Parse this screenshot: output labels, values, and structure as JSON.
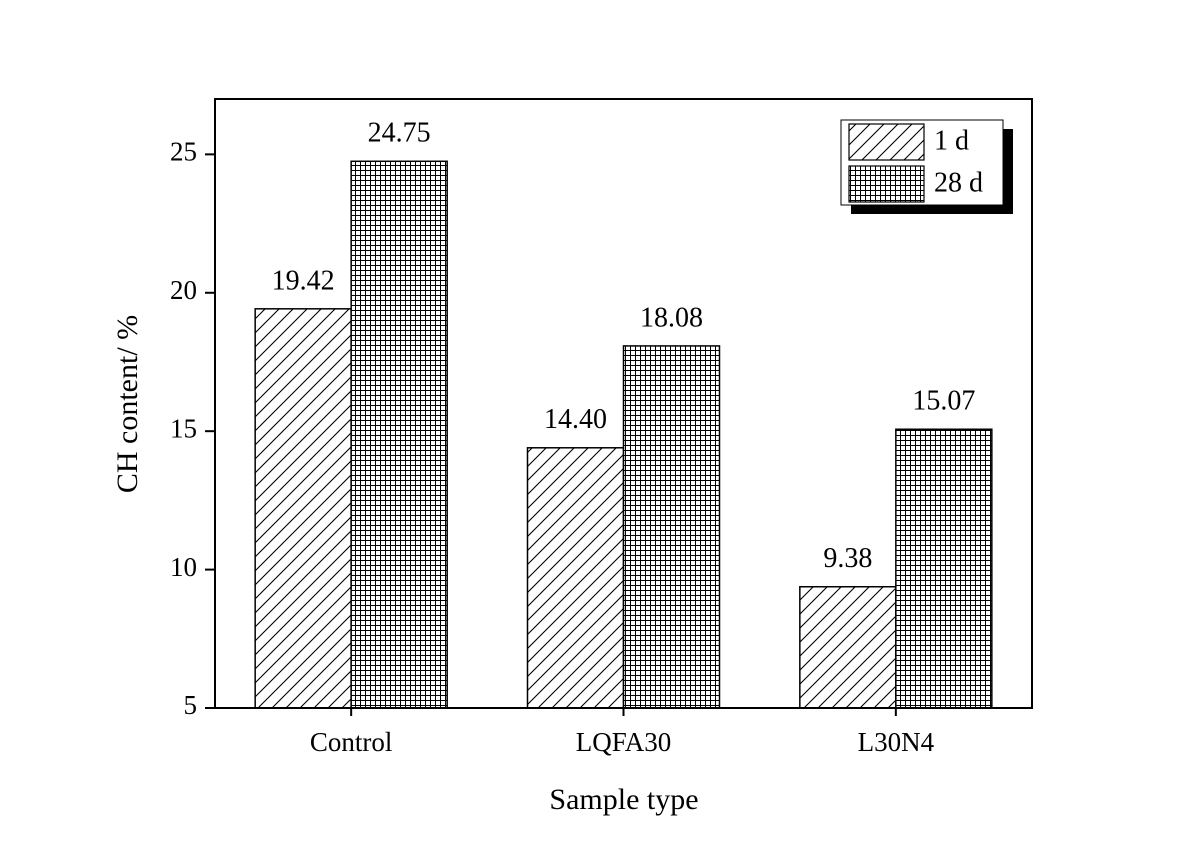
{
  "chart_data": {
    "type": "bar",
    "x_label": "Sample type",
    "y_label": "CH content/ %",
    "categories": [
      "Control",
      "LQFA30",
      "L30N4"
    ],
    "series": [
      {
        "name": "1 d",
        "color": "#000000",
        "pattern": "hatch",
        "values": [
          19.42,
          14.4,
          9.38
        ],
        "value_labels": [
          "19.42",
          "14.40",
          "9.38"
        ]
      },
      {
        "name": "28 d",
        "color": "#000000",
        "pattern": "grid",
        "values": [
          24.75,
          18.08,
          15.07
        ],
        "value_labels": [
          "24.75",
          "18.08",
          "15.07"
        ]
      }
    ],
    "ylim": [
      5,
      27
    ],
    "yticks": [
      5,
      10,
      15,
      20,
      25
    ],
    "grid": false,
    "legend": "upper right"
  }
}
